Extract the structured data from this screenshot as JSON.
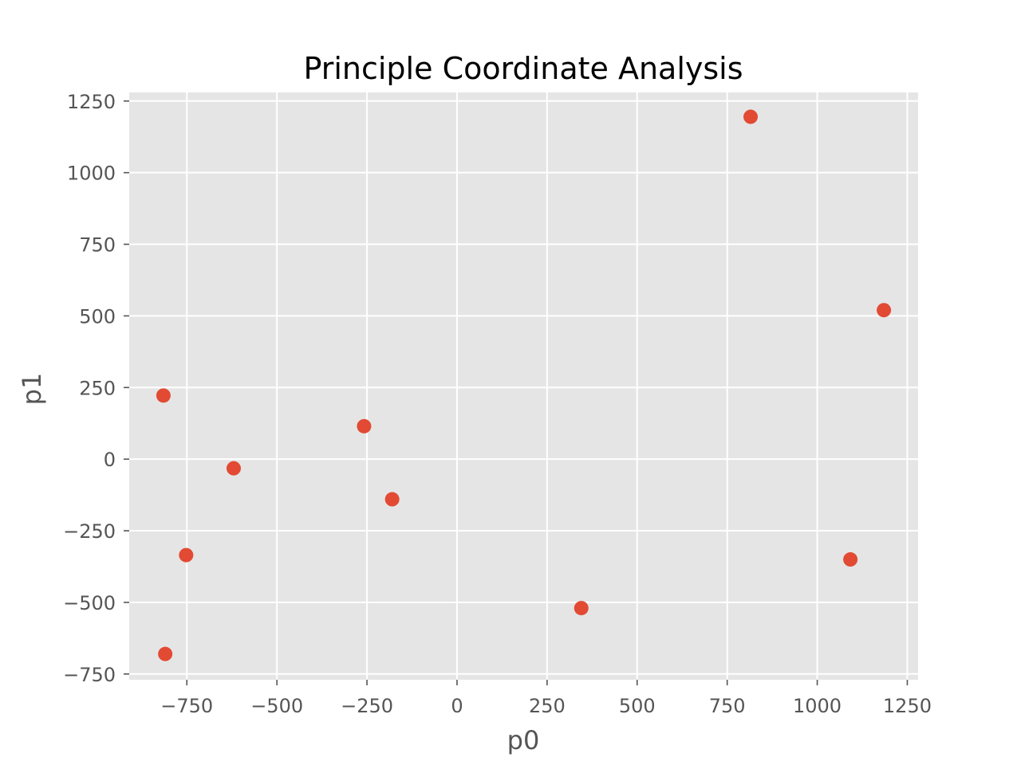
{
  "chart_data": {
    "type": "scatter",
    "title": "Principle Coordinate Analysis",
    "xlabel": "p0",
    "ylabel": "p1",
    "xlim": [
      -910,
      1280
    ],
    "ylim": [
      -770,
      1280
    ],
    "x_ticks": [
      -750,
      -500,
      -250,
      0,
      250,
      500,
      750,
      1000,
      1250
    ],
    "y_ticks": [
      -750,
      -500,
      -250,
      0,
      250,
      500,
      750,
      1000,
      1250
    ],
    "x_tick_labels": [
      "−750",
      "−500",
      "−250",
      "0",
      "250",
      "500",
      "750",
      "1000",
      "1250"
    ],
    "y_tick_labels": [
      "−750",
      "−500",
      "−250",
      "0",
      "250",
      "500",
      "750",
      "1000",
      "1250"
    ],
    "grid": true,
    "background": "#e5e5e5",
    "marker_color": "#e24a33",
    "points": [
      {
        "x": 815,
        "y": 1195
      },
      {
        "x": 1185,
        "y": 520
      },
      {
        "x": -815,
        "y": 222
      },
      {
        "x": -258,
        "y": 115
      },
      {
        "x": -620,
        "y": -32
      },
      {
        "x": -180,
        "y": -140
      },
      {
        "x": -752,
        "y": -335
      },
      {
        "x": 1092,
        "y": -350
      },
      {
        "x": 345,
        "y": -520
      },
      {
        "x": -810,
        "y": -680
      }
    ]
  }
}
